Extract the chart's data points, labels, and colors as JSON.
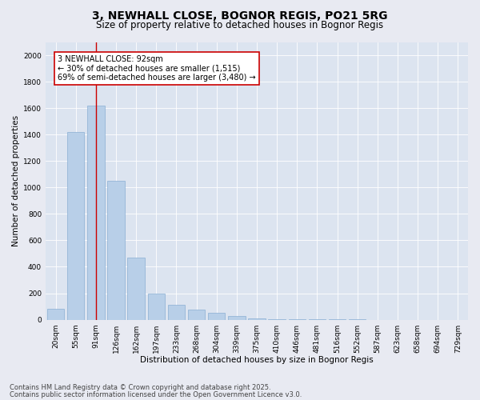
{
  "title1": "3, NEWHALL CLOSE, BOGNOR REGIS, PO21 5RG",
  "title2": "Size of property relative to detached houses in Bognor Regis",
  "xlabel": "Distribution of detached houses by size in Bognor Regis",
  "ylabel": "Number of detached properties",
  "categories": [
    "20sqm",
    "55sqm",
    "91sqm",
    "126sqm",
    "162sqm",
    "197sqm",
    "233sqm",
    "268sqm",
    "304sqm",
    "339sqm",
    "375sqm",
    "410sqm",
    "446sqm",
    "481sqm",
    "516sqm",
    "552sqm",
    "587sqm",
    "623sqm",
    "658sqm",
    "694sqm",
    "729sqm"
  ],
  "values": [
    80,
    1420,
    1620,
    1050,
    470,
    200,
    110,
    75,
    55,
    30,
    10,
    5,
    3,
    2,
    1,
    1,
    0,
    0,
    0,
    0,
    0
  ],
  "bar_color": "#b8cfe8",
  "bar_edge_color": "#8aafd4",
  "vline_x_index": 2,
  "vline_color": "#cc0000",
  "annotation_text": "3 NEWHALL CLOSE: 92sqm\n← 30% of detached houses are smaller (1,515)\n69% of semi-detached houses are larger (3,480) →",
  "annotation_box_facecolor": "#ffffff",
  "annotation_box_edgecolor": "#cc0000",
  "ylim_max": 2100,
  "yticks": [
    0,
    200,
    400,
    600,
    800,
    1000,
    1200,
    1400,
    1600,
    1800,
    2000
  ],
  "bg_color": "#e8eaf2",
  "plot_bg_color": "#dce4f0",
  "grid_color": "#ffffff",
  "footer1": "Contains HM Land Registry data © Crown copyright and database right 2025.",
  "footer2": "Contains public sector information licensed under the Open Government Licence v3.0.",
  "title1_fontsize": 10,
  "title2_fontsize": 8.5,
  "xlabel_fontsize": 7.5,
  "ylabel_fontsize": 7.5,
  "tick_fontsize": 6.5,
  "annotation_fontsize": 7,
  "footer_fontsize": 6
}
